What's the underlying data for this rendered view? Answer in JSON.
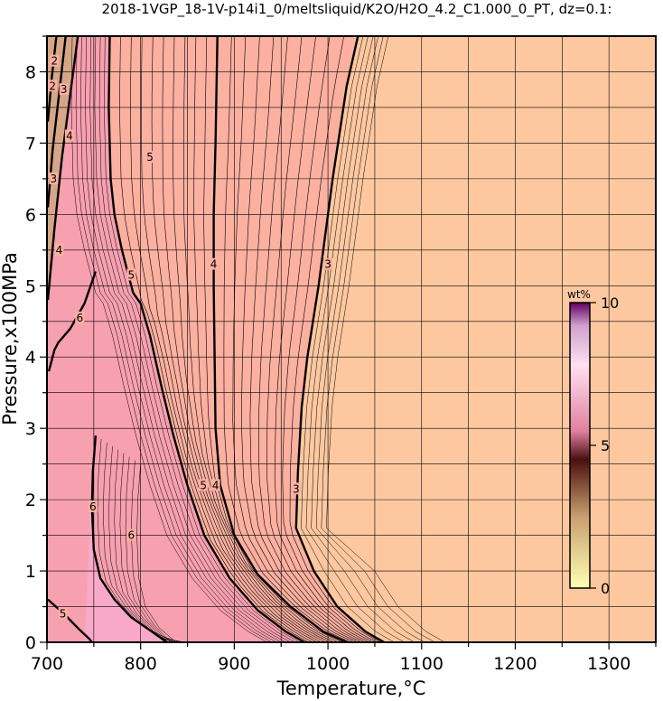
{
  "chart_data": {
    "type": "contour",
    "title": "2018-1VGP_18-1V-p14i1_0/meltsliquid/K2O/H2O_4.2_C1.000_0_PT, dz=0.1:",
    "xlabel": "Temperature,°C",
    "ylabel": "Pressure,x100MPa",
    "xlim": [
      700,
      1350
    ],
    "ylim": [
      0,
      8.5
    ],
    "xticks": [
      "700",
      "800",
      "900",
      "1000",
      "1100",
      "1200",
      "1300"
    ],
    "yticks": [
      "0",
      "1",
      "2",
      "3",
      "4",
      "5",
      "6",
      "7",
      "8"
    ],
    "grid": true,
    "colorbar": {
      "unit": "wt%",
      "min": 0,
      "max": 10,
      "ticks": [
        "0",
        "5",
        "10"
      ],
      "colors": [
        "#ffffb0",
        "#c8a070",
        "#4a1010",
        "#e080a0",
        "#ffe0f0",
        "#d0a0d0",
        "#600060"
      ]
    },
    "colors": {
      "plateau": "#fdc8a0",
      "mid": "#fbb0a0",
      "high": "#f7a0b0",
      "peak": "#f8a8c8"
    },
    "contours": [
      {
        "label": "3",
        "points": [
          [
            1032,
            8.5
          ],
          [
            1020,
            7.8
          ],
          [
            1005,
            6.5
          ],
          [
            990,
            5.0
          ],
          [
            978,
            4.0
          ],
          [
            972,
            3.3
          ],
          [
            968,
            2.4
          ],
          [
            966,
            1.6
          ],
          [
            985,
            1.0
          ],
          [
            1010,
            0.5
          ],
          [
            1040,
            0.15
          ],
          [
            1060,
            0
          ]
        ]
      },
      {
        "label": "4",
        "points": [
          [
            882,
            8.5
          ],
          [
            880,
            7.0
          ],
          [
            878,
            6.0
          ],
          [
            878,
            5.0
          ],
          [
            879,
            4.0
          ],
          [
            880,
            3.0
          ],
          [
            885,
            2.2
          ],
          [
            900,
            1.5
          ],
          [
            925,
            0.95
          ],
          [
            960,
            0.5
          ],
          [
            995,
            0.15
          ],
          [
            1020,
            0
          ]
        ]
      },
      {
        "label": "5",
        "points": [
          [
            767,
            8.5
          ],
          [
            766,
            7.5
          ],
          [
            768,
            6.5
          ],
          [
            772,
            6.0
          ],
          [
            780,
            5.5
          ],
          [
            788,
            5.1
          ],
          [
            792,
            4.9
          ],
          [
            800,
            4.75
          ],
          [
            810,
            4.3
          ],
          [
            822,
            3.6
          ],
          [
            835,
            2.9
          ],
          [
            850,
            2.2
          ],
          [
            868,
            1.5
          ],
          [
            895,
            0.9
          ],
          [
            925,
            0.45
          ],
          [
            955,
            0.15
          ],
          [
            975,
            0
          ]
        ]
      },
      {
        "label": "6",
        "points": [
          [
            752,
            2.9
          ],
          [
            749,
            2.4
          ],
          [
            748,
            1.9
          ],
          [
            750,
            1.3
          ],
          [
            757,
            0.9
          ],
          [
            772,
            0.6
          ],
          [
            790,
            0.35
          ],
          [
            812,
            0.15
          ],
          [
            828,
            0
          ]
        ]
      },
      {
        "label": "6",
        "points": [
          [
            702,
            3.8
          ],
          [
            708,
            4.1
          ],
          [
            712,
            4.2
          ],
          [
            725,
            4.4
          ],
          [
            740,
            4.75
          ],
          [
            752,
            5.2
          ]
        ]
      },
      {
        "label": "5",
        "points": [
          [
            701,
            0.6
          ],
          [
            718,
            0.4
          ],
          [
            733,
            0.2
          ],
          [
            745,
            0.05
          ],
          [
            748,
            0
          ]
        ]
      },
      {
        "label": "4",
        "points": [
          [
            701,
            4.8
          ],
          [
            708,
            5.8
          ],
          [
            716,
            6.8
          ],
          [
            726,
            7.8
          ],
          [
            733,
            8.5
          ]
        ]
      },
      {
        "label": "3",
        "points": [
          [
            701,
            6.1
          ],
          [
            706,
            6.9
          ],
          [
            713,
            7.7
          ],
          [
            720,
            8.5
          ]
        ]
      },
      {
        "label": "2",
        "points": [
          [
            701,
            7.3
          ],
          [
            705,
            7.9
          ],
          [
            710,
            8.5
          ]
        ]
      }
    ],
    "contour_labels": [
      {
        "text": "3",
        "x": 1000,
        "y": 5.3
      },
      {
        "text": "4",
        "x": 878,
        "y": 5.3
      },
      {
        "text": "5",
        "x": 810,
        "y": 6.8
      },
      {
        "text": "5",
        "x": 790,
        "y": 5.15
      },
      {
        "text": "4",
        "x": 880,
        "y": 2.2
      },
      {
        "text": "3",
        "x": 966,
        "y": 2.15
      },
      {
        "text": "5",
        "x": 867,
        "y": 2.2
      },
      {
        "text": "6",
        "x": 749,
        "y": 1.9
      },
      {
        "text": "6",
        "x": 790,
        "y": 1.5
      },
      {
        "text": "6",
        "x": 735,
        "y": 4.55
      },
      {
        "text": "5",
        "x": 717,
        "y": 0.4
      },
      {
        "text": "4",
        "x": 713,
        "y": 5.5
      },
      {
        "text": "3",
        "x": 707,
        "y": 6.5
      },
      {
        "text": "4",
        "x": 724,
        "y": 7.1
      },
      {
        "text": "3",
        "x": 718,
        "y": 7.75
      },
      {
        "text": "2",
        "x": 708,
        "y": 8.15
      },
      {
        "text": "2",
        "x": 706,
        "y": 7.8
      }
    ]
  }
}
